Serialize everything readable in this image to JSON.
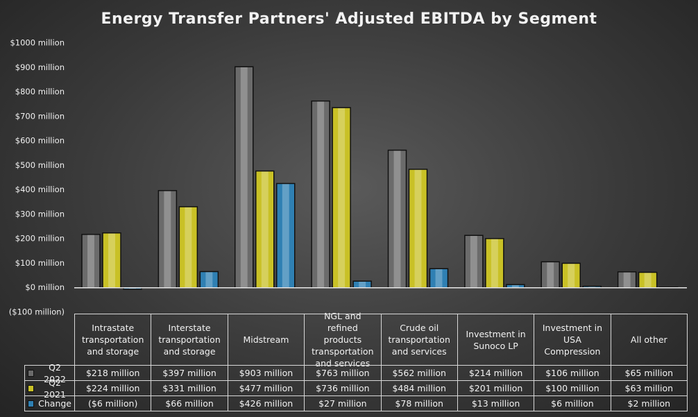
{
  "chart_data": {
    "type": "bar",
    "title": "Energy Transfer Partners' Adjusted EBITDA by Segment",
    "categories": [
      "Intrastate transportation and storage",
      "Interstate transportation and storage",
      "Midstream",
      "NGL and refined products transportation and services",
      "Crude oil transportation and services",
      "Investment in Sunoco LP",
      "Investment in USA Compression",
      "All other"
    ],
    "series": [
      {
        "name": "Q2 2022",
        "color": "#6b6b6b",
        "values": [
          218,
          397,
          903,
          763,
          562,
          214,
          106,
          65
        ],
        "value_labels": [
          "$218 million",
          "$397 million",
          "$903 million",
          "$763 million",
          "$562 million",
          "$214 million",
          "$106 million",
          "$65 million"
        ]
      },
      {
        "name": "Q2 2021",
        "color": "#c9c126",
        "values": [
          224,
          331,
          477,
          736,
          484,
          201,
          100,
          63
        ],
        "value_labels": [
          "$224 million",
          "$331 million",
          "$477 million",
          "$736 million",
          "$484 million",
          "$201 million",
          "$100 million",
          "$63 million"
        ]
      },
      {
        "name": "Change",
        "color": "#2f80b3",
        "values": [
          -6,
          66,
          426,
          27,
          78,
          13,
          6,
          2
        ],
        "value_labels": [
          "($6 million)",
          "$66 million",
          "$426 million",
          "$27 million",
          "$78 million",
          "$13 million",
          "$6 million",
          "$2 million"
        ]
      }
    ],
    "ylim": [
      -100,
      1000
    ],
    "yticks": [
      {
        "value": -100,
        "label": "($100 million)"
      },
      {
        "value": 0,
        "label": "$0 million"
      },
      {
        "value": 100,
        "label": "$100 million"
      },
      {
        "value": 200,
        "label": "$200 million"
      },
      {
        "value": 300,
        "label": "$300 million"
      },
      {
        "value": 400,
        "label": "$400 million"
      },
      {
        "value": 500,
        "label": "$500 million"
      },
      {
        "value": 600,
        "label": "$600 million"
      },
      {
        "value": 700,
        "label": "$700 million"
      },
      {
        "value": 800,
        "label": "$800 million"
      },
      {
        "value": 900,
        "label": "$900 million"
      },
      {
        "value": 1000,
        "label": "$1000 million"
      }
    ],
    "grid": false
  }
}
